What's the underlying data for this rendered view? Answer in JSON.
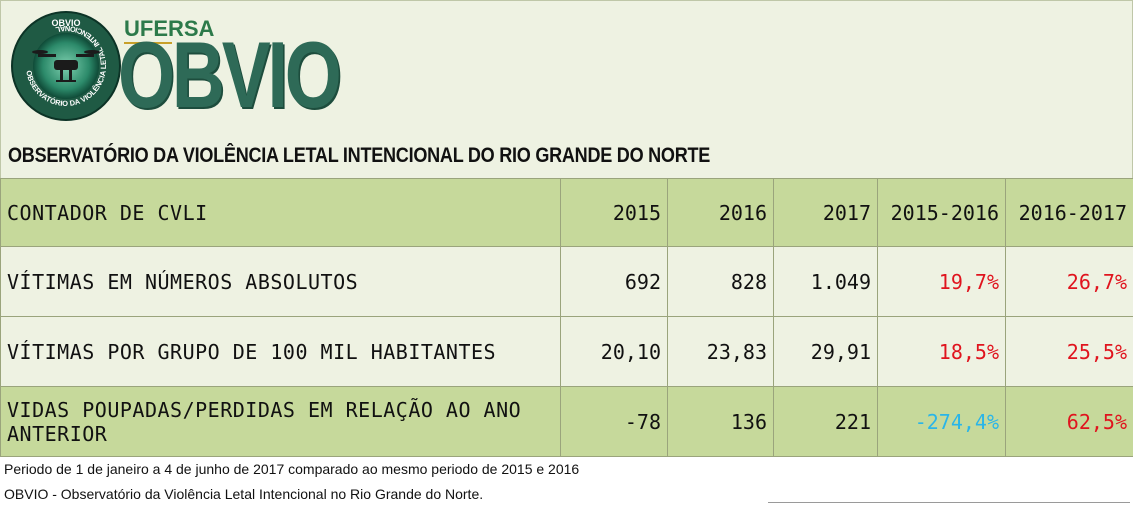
{
  "logo": {
    "badge_top_text": "OBVIO",
    "badge_ring_text": "OBSERVATÓRIO DA VIOLÊNCIA LETAL INTENCIONAL",
    "ufersa": "UFERSA",
    "wordmark": "OBVIO"
  },
  "title": "OBSERVATÓRIO DA VIOLÊNCIA LETAL INTENCIONAL DO RIO GRANDE DO NORTE",
  "table": {
    "header": [
      "CONTADOR DE CVLI",
      "2015",
      "2016",
      "2017",
      "2015-2016",
      "2016-2017"
    ],
    "rows": [
      {
        "label": "VÍTIMAS EM NÚMEROS ABSOLUTOS",
        "y2015": "692",
        "y2016": "828",
        "y2017": "1.049",
        "p1516": "19,7%",
        "p1617": "26,7%"
      },
      {
        "label": "VÍTIMAS POR GRUPO DE 100 MIL HABITANTES",
        "y2015": "20,10",
        "y2016": "23,83",
        "y2017": "29,91",
        "p1516": "18,5%",
        "p1617": "25,5%"
      },
      {
        "label_line1": "VIDAS POUPADAS/PERDIDAS EM RELAÇÃO AO ANO",
        "label_line2": "ANTERIOR",
        "y2015": "-78",
        "y2016": "136",
        "y2017": "221",
        "p1516": "-274,4%",
        "p1617": "62,5%"
      }
    ]
  },
  "notes": [
    "Periodo de 1 de janeiro a 4 de junho de 2017 comparado ao mesmo periodo de 2015 e 2016",
    "OBVIO - Observatório da Violência Letal Intencional no Rio Grande do Norte."
  ],
  "colors": {
    "increase": "#e0141e",
    "decrease": "#2ab5e8",
    "header_bg": "#c6d99b",
    "row_bg": "#eef2e2",
    "brand_green": "#2e6a57"
  }
}
